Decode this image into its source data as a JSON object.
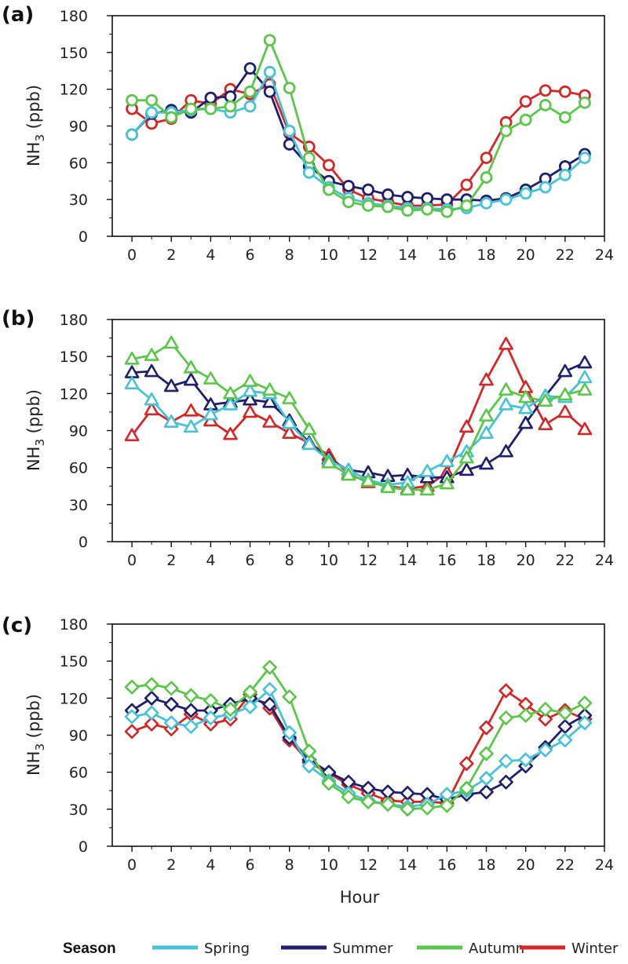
{
  "chart_data": [
    {
      "panel": "(a)",
      "type": "line",
      "marker": "circle",
      "ylabel_main": "NH",
      "ylabel_sub": "3",
      "ylabel_rest": " (ppb)",
      "ylim": [
        0,
        180
      ],
      "yticks": [
        "0",
        "30",
        "60",
        "90",
        "120",
        "150",
        "180"
      ],
      "xlim": [
        -1,
        24
      ],
      "xticks": [
        "0",
        "2",
        "4",
        "6",
        "8",
        "10",
        "12",
        "14",
        "16",
        "18",
        "20",
        "22",
        "24"
      ],
      "x": [
        0,
        1,
        2,
        3,
        4,
        5,
        6,
        7,
        8,
        9,
        10,
        11,
        12,
        13,
        14,
        15,
        16,
        17,
        18,
        19,
        20,
        21,
        22,
        23
      ],
      "series": [
        {
          "name": "Winter",
          "color": "#d62728",
          "values": [
            104,
            92,
            96,
            111,
            108,
            120,
            116,
            124,
            84,
            73,
            58,
            38,
            31,
            28,
            25,
            25,
            26,
            42,
            64,
            93,
            110,
            119,
            118,
            115
          ]
        },
        {
          "name": "Summer",
          "color": "#1f1f6e",
          "values": [
            83,
            100,
            103,
            101,
            113,
            114,
            137,
            118,
            75,
            57,
            45,
            41,
            38,
            34,
            32,
            31,
            30,
            30,
            29,
            31,
            38,
            47,
            57,
            67
          ]
        },
        {
          "name": "Spring",
          "color": "#47c3d6",
          "values": [
            83,
            101,
            101,
            103,
            104,
            101,
            106,
            134,
            86,
            52,
            40,
            31,
            27,
            25,
            23,
            23,
            22,
            23,
            27,
            30,
            35,
            40,
            50,
            64
          ]
        },
        {
          "name": "Autumn",
          "color": "#5ac74a",
          "values": [
            111,
            111,
            97,
            104,
            104,
            106,
            118,
            160,
            121,
            64,
            38,
            28,
            25,
            24,
            21,
            22,
            20,
            25,
            48,
            86,
            95,
            107,
            97,
            109
          ]
        }
      ]
    },
    {
      "panel": "(b)",
      "type": "line",
      "marker": "triangle",
      "ylabel_main": "NH",
      "ylabel_sub": "3",
      "ylabel_rest": " (ppb)",
      "ylim": [
        0,
        180
      ],
      "yticks": [
        "0",
        "30",
        "60",
        "90",
        "120",
        "150",
        "180"
      ],
      "xlim": [
        -1,
        24
      ],
      "xticks": [
        "0",
        "2",
        "4",
        "6",
        "8",
        "10",
        "12",
        "14",
        "16",
        "18",
        "20",
        "22",
        "24"
      ],
      "x": [
        0,
        1,
        2,
        3,
        4,
        5,
        6,
        7,
        8,
        9,
        10,
        11,
        12,
        13,
        14,
        15,
        16,
        17,
        18,
        19,
        20,
        21,
        22,
        23
      ],
      "series": [
        {
          "name": "Winter",
          "color": "#d62728",
          "values": [
            86,
            107,
            97,
            106,
            98,
            87,
            105,
            97,
            88,
            80,
            70,
            55,
            48,
            45,
            43,
            45,
            56,
            93,
            131,
            160,
            125,
            95,
            105,
            91
          ]
        },
        {
          "name": "Summer",
          "color": "#1f1f6e",
          "values": [
            137,
            138,
            126,
            131,
            111,
            113,
            115,
            113,
            98,
            80,
            67,
            58,
            56,
            53,
            54,
            52,
            52,
            58,
            63,
            73,
            96,
            118,
            138,
            145
          ]
        },
        {
          "name": "Spring",
          "color": "#47c3d6",
          "values": [
            128,
            115,
            97,
            93,
            103,
            111,
            122,
            120,
            96,
            79,
            66,
            58,
            50,
            46,
            48,
            57,
            65,
            73,
            88,
            111,
            108,
            118,
            117,
            133
          ]
        },
        {
          "name": "Autumn",
          "color": "#5ac74a",
          "values": [
            148,
            151,
            161,
            141,
            132,
            120,
            130,
            123,
            116,
            91,
            64,
            54,
            49,
            44,
            42,
            42,
            47,
            68,
            102,
            123,
            117,
            114,
            119,
            123
          ]
        }
      ]
    },
    {
      "panel": "(c)",
      "type": "line",
      "marker": "diamond",
      "ylabel_main": "NH",
      "ylabel_sub": "3",
      "ylabel_rest": " (ppb)",
      "xlabel": "Hour",
      "ylim": [
        0,
        180
      ],
      "yticks": [
        "0",
        "30",
        "60",
        "90",
        "120",
        "150",
        "180"
      ],
      "xlim": [
        -1,
        24
      ],
      "xticks": [
        "0",
        "2",
        "4",
        "6",
        "8",
        "10",
        "12",
        "14",
        "16",
        "18",
        "20",
        "22",
        "24"
      ],
      "x": [
        0,
        1,
        2,
        3,
        4,
        5,
        6,
        7,
        8,
        9,
        10,
        11,
        12,
        13,
        14,
        15,
        16,
        17,
        18,
        19,
        20,
        21,
        22,
        23
      ],
      "series": [
        {
          "name": "Winter",
          "color": "#d62728",
          "values": [
            93,
            99,
            95,
            107,
            99,
            103,
            123,
            112,
            86,
            68,
            59,
            50,
            43,
            37,
            36,
            36,
            35,
            67,
            96,
            126,
            115,
            103,
            110,
            103
          ]
        },
        {
          "name": "Summer",
          "color": "#1f1f6e",
          "values": [
            110,
            120,
            115,
            110,
            110,
            115,
            120,
            115,
            88,
            70,
            60,
            52,
            47,
            44,
            43,
            42,
            38,
            42,
            44,
            52,
            65,
            80,
            97,
            106
          ]
        },
        {
          "name": "Spring",
          "color": "#47c3d6",
          "values": [
            105,
            108,
            100,
            97,
            104,
            107,
            113,
            127,
            92,
            65,
            53,
            43,
            37,
            34,
            32,
            34,
            42,
            45,
            55,
            69,
            70,
            78,
            86,
            100
          ]
        },
        {
          "name": "Autumn",
          "color": "#5ac74a",
          "values": [
            129,
            131,
            128,
            122,
            118,
            111,
            125,
            145,
            121,
            77,
            51,
            40,
            36,
            34,
            30,
            31,
            33,
            47,
            75,
            104,
            106,
            111,
            108,
            116
          ]
        }
      ]
    }
  ],
  "legend": {
    "title": "Season",
    "items": [
      {
        "label": "Spring",
        "color": "#47c3d6"
      },
      {
        "label": "Summer",
        "color": "#1f1f6e"
      },
      {
        "label": "Autumn",
        "color": "#5ac74a"
      },
      {
        "label": "Winter",
        "color": "#d62728"
      }
    ]
  }
}
